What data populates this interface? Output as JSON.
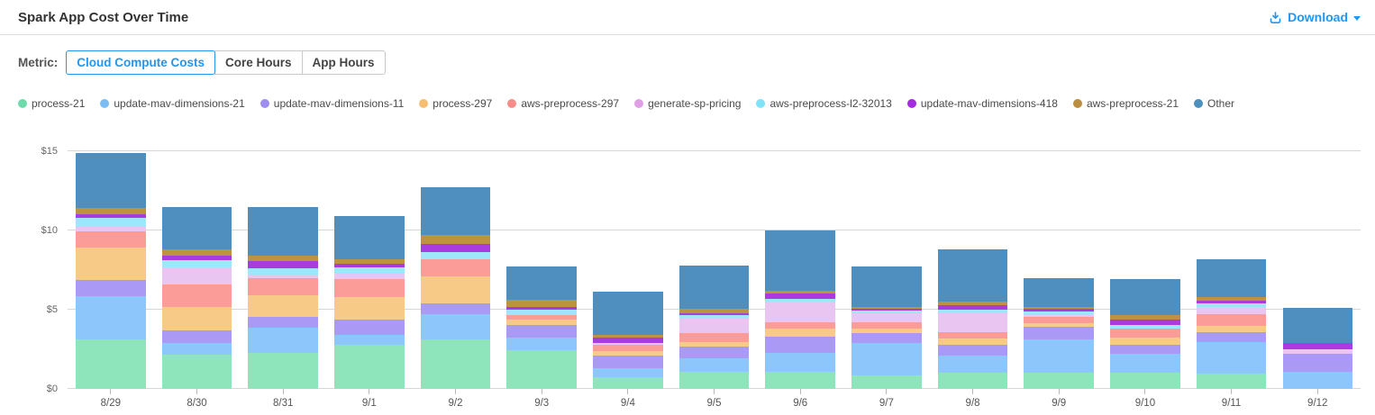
{
  "header": {
    "title": "Spark App Cost Over Time",
    "download_label": "Download"
  },
  "metric": {
    "label": "Metric:",
    "tabs": [
      {
        "label": "Cloud Compute Costs",
        "selected": true
      },
      {
        "label": "Core Hours",
        "selected": false
      },
      {
        "label": "App Hours",
        "selected": false
      }
    ]
  },
  "colors": {
    "accent": "#2196F3",
    "grid": "#d7d7d7",
    "axis_text": "#666666",
    "legend_text": "#4a4a4a",
    "title_text": "#333333"
  },
  "chart_data": {
    "type": "bar",
    "stacked": true,
    "title": "Spark App Cost Over Time",
    "ylabel": "Cloud Compute Costs ($)",
    "xlabel": "",
    "ylim": [
      0,
      15
    ],
    "yticks": [
      0,
      5,
      10,
      15
    ],
    "ytick_labels": [
      "$0",
      "$5",
      "$10",
      "$15"
    ],
    "grid": true,
    "legend_position": "top",
    "categories": [
      "8/29",
      "8/30",
      "8/31",
      "9/1",
      "9/2",
      "9/3",
      "9/4",
      "9/5",
      "9/6",
      "9/7",
      "9/8",
      "9/9",
      "9/10",
      "9/11",
      "9/12"
    ],
    "series": [
      {
        "name": "process-21",
        "color": "#8EE4BB",
        "dot_color": "#6EDCAA",
        "values": [
          3.1,
          2.15,
          2.25,
          2.8,
          3.15,
          2.45,
          0.75,
          1.1,
          1.1,
          0.85,
          1.0,
          1.05,
          1.05,
          0.95,
          0
        ]
      },
      {
        "name": "update-mav-dimensions-21",
        "color": "#8CC6FA",
        "dot_color": "#7BBCF3",
        "values": [
          2.75,
          0.75,
          1.6,
          0.6,
          1.55,
          0.8,
          0.55,
          0.85,
          1.15,
          2.05,
          1.1,
          2.05,
          1.15,
          2.0,
          1.1
        ]
      },
      {
        "name": "update-mav-dimensions-11",
        "color": "#AB9AF5",
        "dot_color": "#9E8DEF",
        "values": [
          1.0,
          0.8,
          0.7,
          0.95,
          0.7,
          0.8,
          0.8,
          0.75,
          1.05,
          0.6,
          0.7,
          0.8,
          0.6,
          0.65,
          1.1
        ]
      },
      {
        "name": "process-297",
        "color": "#F8CA88",
        "dot_color": "#F6BE71",
        "values": [
          2.05,
          1.5,
          1.35,
          1.45,
          1.7,
          0.35,
          0.3,
          0.25,
          0.5,
          0.3,
          0.4,
          0.25,
          0.45,
          0.4,
          0
        ]
      },
      {
        "name": "aws-preprocess-297",
        "color": "#FC9C99",
        "dot_color": "#F68D8A",
        "values": [
          1.05,
          1.4,
          1.1,
          1.15,
          1.1,
          0.25,
          0.4,
          0.55,
          0.4,
          0.4,
          0.4,
          0.4,
          0.55,
          0.7,
          0
        ]
      },
      {
        "name": "generate-sp-pricing",
        "color": "#E8C6F1",
        "dot_color": "#DF9FE5",
        "values": [
          0.3,
          1.1,
          0.15,
          0.35,
          0,
          0,
          0.1,
          0.95,
          1.3,
          0.6,
          1.2,
          0.15,
          0,
          0.45,
          0.3
        ]
      },
      {
        "name": "aws-preprocess-l2-32013",
        "color": "#9EE7FA",
        "dot_color": "#7FE2F6",
        "values": [
          0.55,
          0.45,
          0.45,
          0.35,
          0.45,
          0.35,
          0,
          0.2,
          0.2,
          0.15,
          0.2,
          0.2,
          0.25,
          0.25,
          0
        ]
      },
      {
        "name": "update-mav-dimensions-418",
        "color": "#A93BE0",
        "dot_color": "#A52BE0",
        "values": [
          0.25,
          0.25,
          0.5,
          0.25,
          0.5,
          0.15,
          0.35,
          0.15,
          0.3,
          0.1,
          0.3,
          0.15,
          0.35,
          0.15,
          0.4
        ]
      },
      {
        "name": "aws-preprocess-21",
        "color": "#BD9240",
        "dot_color": "#B98E3E",
        "values": [
          0.4,
          0.4,
          0.3,
          0.3,
          0.55,
          0.5,
          0.15,
          0.25,
          0.2,
          0.15,
          0.2,
          0.15,
          0.25,
          0.25,
          0
        ]
      },
      {
        "name": "Other",
        "color": "#4E8FBF",
        "dot_color": "#4D8FBF",
        "values": [
          3.45,
          2.7,
          3.1,
          2.7,
          3.05,
          2.1,
          2.75,
          2.75,
          3.8,
          2.55,
          3.3,
          1.8,
          2.3,
          2.4,
          2.2
        ]
      }
    ]
  }
}
